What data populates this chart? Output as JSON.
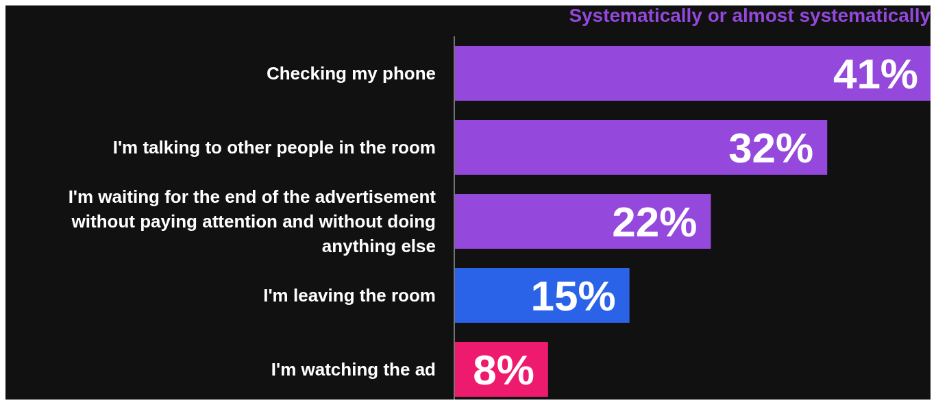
{
  "chart_data": {
    "type": "bar",
    "orientation": "horizontal",
    "title": "Systematically or almost systematically",
    "categories": [
      "Checking my phone",
      "I'm talking to other people in the room",
      "I'm waiting for the end of the advertisement without paying attention and without doing anything else",
      "I'm leaving the room",
      "I'm watching the ad"
    ],
    "values": [
      41,
      32,
      22,
      15,
      8
    ],
    "value_labels": [
      "41%",
      "32%",
      "22%",
      "15%",
      "8%"
    ],
    "colors": [
      "#9448dc",
      "#9448dc",
      "#9448dc",
      "#2b63e8",
      "#ee1a6e"
    ]
  }
}
